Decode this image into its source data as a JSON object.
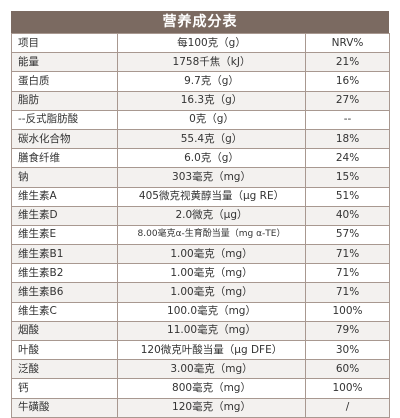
{
  "title": "营养成分表",
  "header": {
    "item": "项目",
    "per": "每100克（g）",
    "nrv": "NRV%"
  },
  "rows": [
    {
      "name": "能量",
      "amount": "1758千焦（kJ）",
      "nrv": "21%"
    },
    {
      "name": "蛋白质",
      "amount": "9.7克（g）",
      "nrv": "16%"
    },
    {
      "name": "脂肪",
      "amount": "16.3克（g）",
      "nrv": "27%"
    },
    {
      "name": "--反式脂肪酸",
      "amount": "0克（g）",
      "nrv": "--"
    },
    {
      "name": "碳水化合物",
      "amount": "55.4克（g）",
      "nrv": "18%"
    },
    {
      "name": "膳食纤维",
      "amount": "6.0克（g）",
      "nrv": "24%"
    },
    {
      "name": "钠",
      "amount": "303毫克（mg）",
      "nrv": "15%"
    },
    {
      "name": "维生素A",
      "amount": "405微克视黄醇当量（μg RE）",
      "nrv": "51%"
    },
    {
      "name": "维生素D",
      "amount": "2.0微克（μg）",
      "nrv": "40%"
    },
    {
      "name": "维生素E",
      "amount": "8.00毫克α-生育酚当量（mg α-TE）",
      "nrv": "57%"
    },
    {
      "name": "维生素B1",
      "amount": "1.00毫克（mg）",
      "nrv": "71%"
    },
    {
      "name": "维生素B2",
      "amount": "1.00毫克（mg）",
      "nrv": "71%"
    },
    {
      "name": "维生素B6",
      "amount": "1.00毫克（mg）",
      "nrv": "71%"
    },
    {
      "name": "维生素C",
      "amount": "100.0毫克（mg）",
      "nrv": "100%"
    },
    {
      "name": "烟酸",
      "amount": "11.00毫克（mg）",
      "nrv": "79%"
    },
    {
      "name": "叶酸",
      "amount": "120微克叶酸当量（μg DFE）",
      "nrv": "30%"
    },
    {
      "name": "泛酸",
      "amount": "3.00毫克（mg）",
      "nrv": "60%"
    },
    {
      "name": "钙",
      "amount": "800毫克（mg）",
      "nrv": "100%"
    },
    {
      "name": "牛磺酸",
      "amount": "120毫克（mg）",
      "nrv": "/"
    }
  ]
}
